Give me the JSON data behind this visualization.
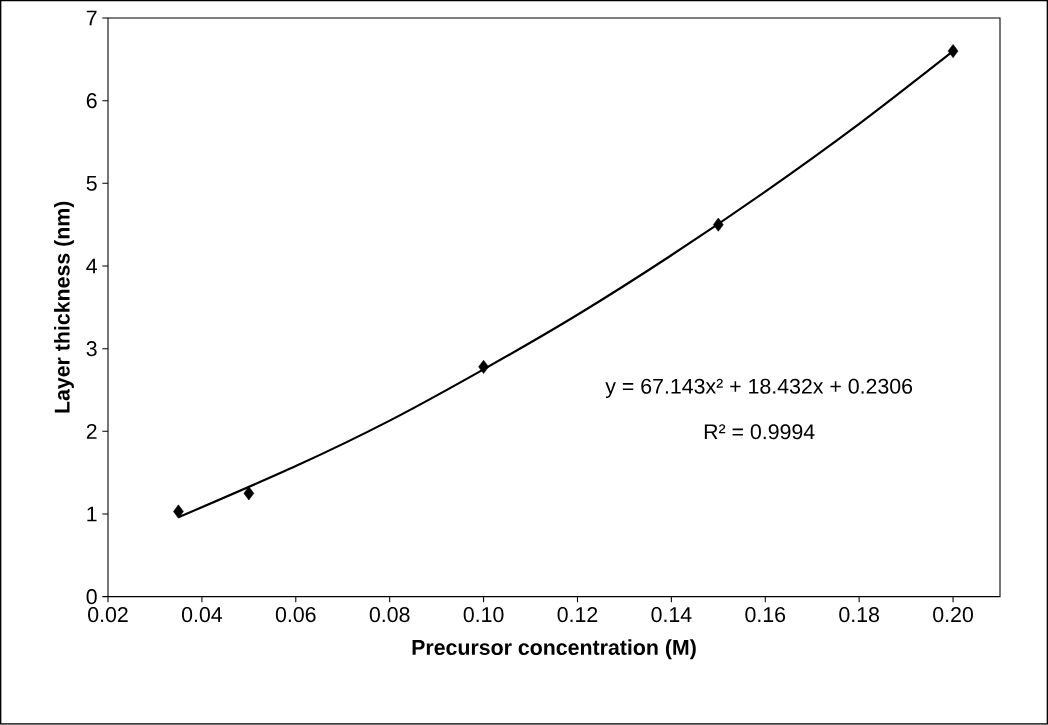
{
  "chart_data": {
    "type": "scatter",
    "xlabel": "Precursor concentration (M)",
    "ylabel": "Layer thickness (nm)",
    "x": [
      0.035,
      0.05,
      0.1,
      0.15,
      0.2
    ],
    "series": [
      {
        "color": "#000000",
        "marker": "diamond",
        "values": [
          1.03,
          1.25,
          2.78,
          4.5,
          6.6
        ]
      },
      {
        "type": "line",
        "color": "#000000",
        "x": [
          0.035,
          0.06,
          0.08,
          0.1,
          0.12,
          0.14,
          0.16,
          0.18,
          0.2
        ],
        "values": [
          0.96,
          1.58,
          2.13,
          2.75,
          3.41,
          4.13,
          4.9,
          5.72,
          6.6
        ]
      }
    ],
    "xlim": [
      0.02,
      0.21
    ],
    "ylim": [
      0,
      7
    ],
    "xticks": [
      {
        "value": 0.02,
        "label": "0.02"
      },
      {
        "value": 0.04,
        "label": "0.04"
      },
      {
        "value": 0.06,
        "label": "0.06"
      },
      {
        "value": 0.08,
        "label": "0.08"
      },
      {
        "value": 0.1,
        "label": "0.10"
      },
      {
        "value": 0.12,
        "label": "0.12"
      },
      {
        "value": 0.14,
        "label": "0.14"
      },
      {
        "value": 0.16,
        "label": "0.16"
      },
      {
        "value": 0.18,
        "label": "0.18"
      },
      {
        "value": 0.2,
        "label": "0.20"
      }
    ],
    "yticks": [
      0,
      1,
      2,
      3,
      4,
      5,
      6,
      7
    ],
    "annotations": [
      "y = 67.143x² + 18.432x + 0.2306",
      "R² = 0.9994"
    ],
    "grid": false
  }
}
